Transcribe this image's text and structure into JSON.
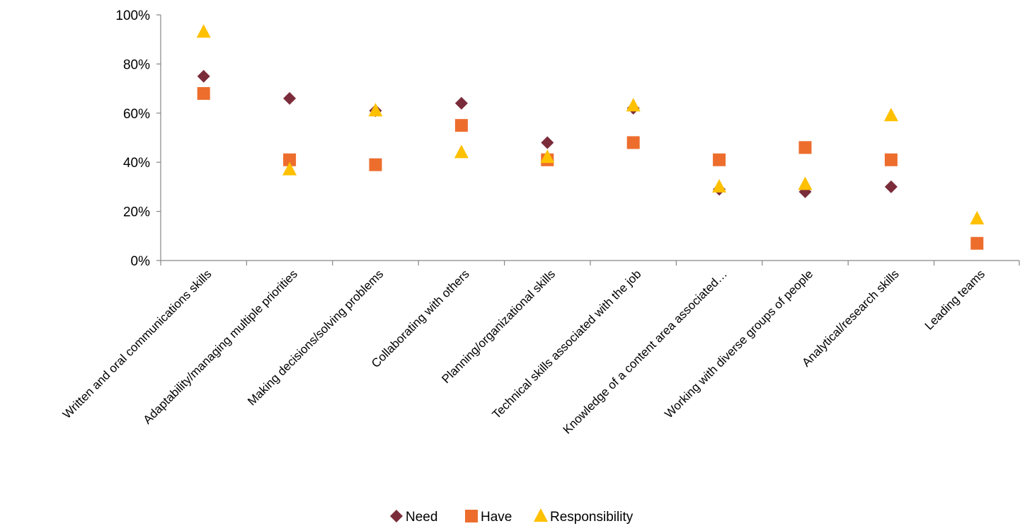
{
  "chart_data": {
    "type": "scatter",
    "title": "",
    "xlabel": "",
    "ylabel": "",
    "categories": [
      "Written and oral communications skills",
      "Adaptability/managing multiple priorities",
      "Making decisions/solving problems",
      "Collaborating with others",
      "Planning/organizational skills",
      "Technical skills associated with the job",
      "Knowledge of a content area associated…",
      "Working with diverse groups of people",
      "Analytical/research skills",
      "Leading teams"
    ],
    "y_ticks": [
      "0%",
      "20%",
      "40%",
      "60%",
      "80%",
      "100%"
    ],
    "ylim": [
      0,
      100
    ],
    "grid": false,
    "legend_position": "bottom",
    "series": [
      {
        "name": "Need",
        "marker": "diamond",
        "color": "#7B2C3B",
        "values": [
          75,
          66,
          61,
          64,
          48,
          62,
          29,
          28,
          30,
          null
        ]
      },
      {
        "name": "Have",
        "marker": "square",
        "color": "#ED6D2D",
        "values": [
          68,
          41,
          39,
          55,
          41,
          48,
          41,
          46,
          41,
          7
        ]
      },
      {
        "name": "Responsibility",
        "marker": "triangle",
        "color": "#FFC000",
        "values": [
          93,
          37,
          61,
          44,
          42,
          63,
          30,
          31,
          59,
          17
        ]
      }
    ]
  }
}
